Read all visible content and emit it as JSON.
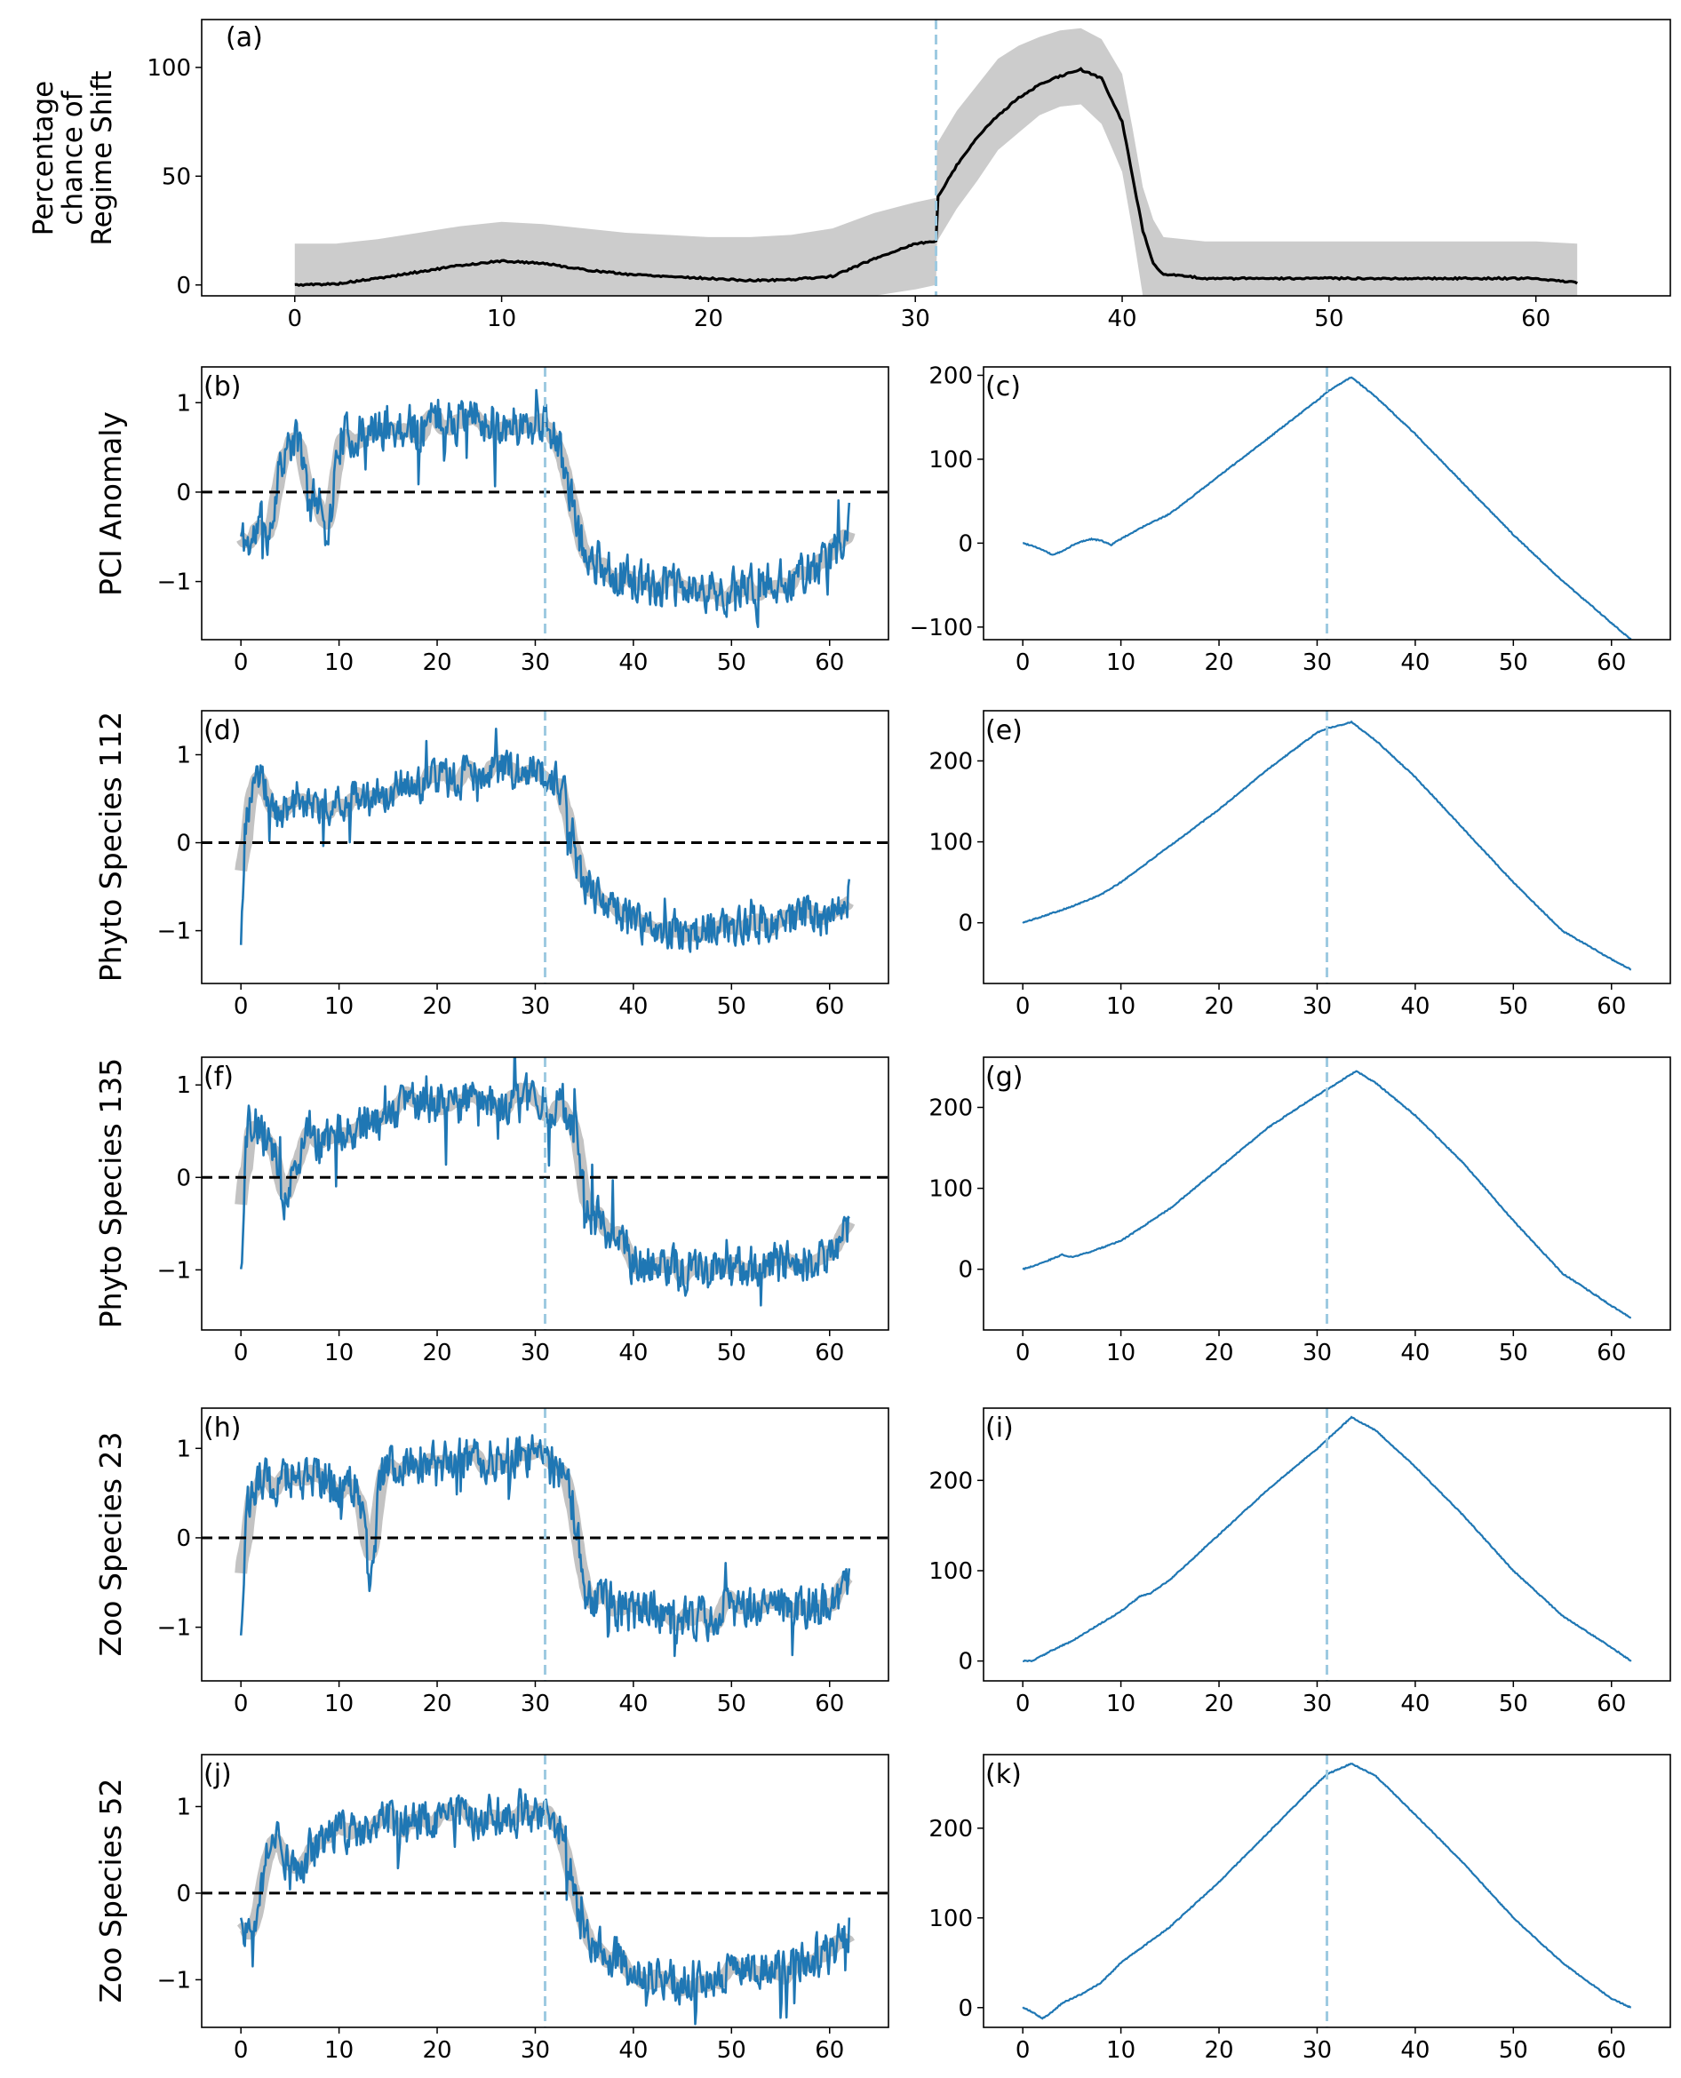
{
  "colors": {
    "line": "#1f77b4",
    "band": "#bdbdbd",
    "band_a": "#cccccc",
    "prob_line": "#000000",
    "vline": "#9ecae1",
    "zero": "#000000"
  },
  "chart_data": [
    {
      "id": "a",
      "type": "line",
      "panel_label": "(a)",
      "ylabel_lines": [
        "Percentage",
        "chance of",
        "Regime Shift"
      ],
      "xlim": [
        -4.5,
        66.5
      ],
      "ylim": [
        -5,
        122
      ],
      "xticks": [
        0,
        10,
        20,
        30,
        40,
        50,
        60
      ],
      "yticks": [
        0,
        50,
        100
      ],
      "vline": 31,
      "series": [
        {
          "name": "mean",
          "x": [
            0,
            2,
            4,
            6,
            8,
            10,
            12,
            14,
            16,
            18,
            20,
            22,
            24,
            26,
            28,
            30,
            31,
            31.05,
            32,
            33,
            34,
            35,
            36,
            37,
            38,
            39,
            40,
            40.5,
            41,
            41.5,
            42,
            44,
            48,
            55,
            60,
            62
          ],
          "values": [
            0,
            0.5,
            3,
            6,
            9,
            11,
            10,
            7,
            5,
            4,
            3,
            2,
            2.5,
            4,
            12,
            19,
            20,
            40,
            55,
            68,
            78,
            86,
            92,
            96,
            99,
            95,
            75,
            50,
            25,
            10,
            5,
            3,
            3,
            3,
            3,
            1
          ]
        },
        {
          "name": "upper",
          "x": [
            0,
            2,
            4,
            6,
            8,
            10,
            12,
            14,
            16,
            18,
            20,
            22,
            24,
            26,
            28,
            30,
            31,
            31.05,
            32,
            33,
            34,
            35,
            36,
            37,
            38,
            39,
            40,
            40.5,
            41,
            41.5,
            42,
            44,
            48,
            55,
            60,
            62
          ],
          "values": [
            19,
            19,
            21,
            24,
            27,
            29,
            28,
            26,
            24,
            23,
            22,
            22,
            23,
            26,
            33,
            38,
            40,
            65,
            80,
            92,
            104,
            110,
            114,
            117,
            118,
            113,
            97,
            72,
            45,
            30,
            22,
            20,
            20,
            20,
            20,
            19
          ]
        },
        {
          "name": "lower",
          "x": [
            0,
            2,
            4,
            6,
            8,
            10,
            12,
            14,
            16,
            18,
            20,
            22,
            24,
            26,
            28,
            30,
            31,
            31.05,
            32,
            33,
            34,
            35,
            36,
            37,
            38,
            39,
            40,
            40.5,
            41,
            41.5,
            42,
            44,
            48,
            55,
            60,
            62
          ],
          "values": [
            -5,
            -5,
            -5,
            -5,
            -5,
            -5,
            -5,
            -5,
            -5,
            -5,
            -5,
            -5,
            -5,
            -5,
            -5,
            -2,
            0,
            20,
            35,
            48,
            62,
            70,
            78,
            82,
            83,
            74,
            52,
            25,
            -5,
            -5,
            -5,
            -5,
            -5,
            -5,
            -5,
            -5
          ]
        }
      ]
    },
    {
      "id": "b",
      "type": "line",
      "panel_label": "(b)",
      "row_label": "PCI Anomaly",
      "xlim": [
        -4,
        66
      ],
      "ylim": [
        -1.65,
        1.4
      ],
      "xticks": [
        0,
        10,
        20,
        30,
        40,
        50,
        60
      ],
      "yticks": [
        -1,
        0,
        1
      ],
      "ytick_labels": [
        "−1",
        "0",
        "1"
      ],
      "zero_line": true,
      "vline": 31,
      "band": true,
      "anchor_x": [
        0,
        1,
        2,
        3,
        4,
        5,
        6,
        7,
        8,
        9,
        10,
        15,
        20,
        25,
        30,
        31,
        32,
        33,
        34,
        35,
        40,
        45,
        50,
        55,
        60,
        62
      ],
      "anchor_y": [
        -0.5,
        -0.6,
        -0.3,
        -0.5,
        0.4,
        0.5,
        0.6,
        -0.2,
        0,
        -0.4,
        0.6,
        0.7,
        0.8,
        0.8,
        0.75,
        0.8,
        0.6,
        0.3,
        -0.3,
        -0.7,
        -1.0,
        -1.1,
        -1.1,
        -1.0,
        -0.8,
        -0.3
      ],
      "noise": 0.22,
      "seed": 11,
      "n_points": 620
    },
    {
      "id": "c",
      "type": "line",
      "panel_label": "(c)",
      "xlim": [
        -4,
        66
      ],
      "ylim": [
        -115,
        210
      ],
      "xticks": [
        0,
        10,
        20,
        30,
        40,
        50,
        60
      ],
      "yticks": [
        -100,
        0,
        100,
        200
      ],
      "ytick_labels": [
        "−100",
        "0",
        "100",
        "200"
      ],
      "vline": 31,
      "x": [
        0,
        1,
        2,
        3,
        4,
        5,
        6,
        7,
        8,
        9,
        10,
        12,
        15,
        20,
        25,
        30,
        31,
        33.5,
        36,
        40,
        45,
        50,
        55,
        60,
        62
      ],
      "values": [
        0,
        -3,
        -8,
        -14,
        -10,
        -3,
        2,
        5,
        3,
        -2,
        5,
        18,
        35,
        80,
        125,
        170,
        180,
        198,
        174,
        130,
        70,
        10,
        -45,
        -95,
        -115
      ]
    },
    {
      "id": "d",
      "type": "line",
      "panel_label": "(d)",
      "row_label": "Phyto Species 112",
      "xlim": [
        -4,
        66
      ],
      "ylim": [
        -1.6,
        1.5
      ],
      "xticks": [
        0,
        10,
        20,
        30,
        40,
        50,
        60
      ],
      "yticks": [
        -1,
        0,
        1
      ],
      "ytick_labels": [
        "−1",
        "0",
        "1"
      ],
      "zero_line": true,
      "vline": 31,
      "band": true,
      "anchor_x": [
        0,
        0.5,
        1,
        2,
        3,
        4,
        5,
        6,
        8,
        10,
        15,
        20,
        25,
        30,
        31,
        32,
        33,
        34,
        35,
        40,
        45,
        50,
        55,
        60,
        62
      ],
      "anchor_y": [
        -1.0,
        0.1,
        0.6,
        0.7,
        0.5,
        0.4,
        0.3,
        0.5,
        0.4,
        0.5,
        0.6,
        0.7,
        0.8,
        0.85,
        0.8,
        0.7,
        0.5,
        -0.2,
        -0.5,
        -0.9,
        -1.0,
        -1.0,
        -0.9,
        -0.8,
        -0.6
      ],
      "noise": 0.2,
      "seed": 23,
      "n_points": 620
    },
    {
      "id": "e",
      "type": "line",
      "panel_label": "(e)",
      "xlim": [
        -4,
        66
      ],
      "ylim": [
        -75,
        262
      ],
      "xticks": [
        0,
        10,
        20,
        30,
        40,
        50,
        60
      ],
      "yticks": [
        0,
        100,
        200
      ],
      "vline": 31,
      "x": [
        0,
        2,
        5,
        8,
        10,
        15,
        20,
        25,
        30,
        31,
        33.5,
        36,
        40,
        45,
        50,
        55,
        60,
        62
      ],
      "values": [
        0,
        8,
        20,
        35,
        50,
        95,
        140,
        190,
        235,
        240,
        248,
        225,
        180,
        115,
        50,
        -10,
        -45,
        -58
      ]
    },
    {
      "id": "f",
      "type": "line",
      "panel_label": "(f)",
      "row_label": "Phyto Species 135",
      "xlim": [
        -4,
        66
      ],
      "ylim": [
        -1.65,
        1.3
      ],
      "xticks": [
        0,
        10,
        20,
        30,
        40,
        50,
        60
      ],
      "yticks": [
        -1,
        0,
        1
      ],
      "ytick_labels": [
        "−1",
        "0",
        "1"
      ],
      "zero_line": true,
      "vline": 31,
      "band": true,
      "anchor_x": [
        0,
        0.5,
        1,
        2,
        3,
        4,
        4.5,
        5,
        6,
        7,
        8,
        10,
        15,
        20,
        25,
        30,
        31,
        33,
        34,
        35,
        40,
        45,
        50,
        55,
        60,
        62
      ],
      "anchor_y": [
        -1.0,
        0.4,
        0.6,
        0.5,
        0.4,
        0.1,
        -0.3,
        0.0,
        0.4,
        0.5,
        0.3,
        0.5,
        0.7,
        0.8,
        0.8,
        0.85,
        0.8,
        0.75,
        0.5,
        -0.3,
        -0.9,
        -1.0,
        -1.0,
        -0.95,
        -0.85,
        -0.5
      ],
      "noise": 0.22,
      "seed": 37,
      "n_points": 620
    },
    {
      "id": "g",
      "type": "line",
      "panel_label": "(g)",
      "xlim": [
        -4,
        66
      ],
      "ylim": [
        -75,
        262
      ],
      "xticks": [
        0,
        10,
        20,
        30,
        40,
        50,
        60
      ],
      "yticks": [
        0,
        100,
        200
      ],
      "vline": 31,
      "x": [
        0,
        2,
        4,
        5,
        7,
        10,
        15,
        20,
        25,
        30,
        31,
        34,
        36,
        40,
        45,
        50,
        55,
        60,
        62
      ],
      "values": [
        0,
        8,
        18,
        15,
        22,
        35,
        75,
        125,
        175,
        215,
        222,
        245,
        230,
        190,
        130,
        60,
        -5,
        -45,
        -60
      ]
    },
    {
      "id": "h",
      "type": "line",
      "panel_label": "(h)",
      "row_label": "Zoo Species 23",
      "xlim": [
        -4,
        66
      ],
      "ylim": [
        -1.6,
        1.45
      ],
      "xticks": [
        0,
        10,
        20,
        30,
        40,
        50,
        60
      ],
      "yticks": [
        -1,
        0,
        1
      ],
      "ytick_labels": [
        "−1",
        "0",
        "1"
      ],
      "zero_line": true,
      "vline": 31,
      "band": true,
      "anchor_x": [
        0,
        0.5,
        1,
        2,
        3,
        5,
        8,
        10,
        12,
        13,
        13.5,
        14,
        15,
        20,
        25,
        30,
        31,
        33,
        34,
        35,
        40,
        45,
        50,
        55,
        60,
        62
      ],
      "anchor_y": [
        -0.9,
        0.2,
        0.5,
        0.7,
        0.6,
        0.7,
        0.7,
        0.6,
        0.6,
        -0.4,
        -0.4,
        0.6,
        0.8,
        0.85,
        0.9,
        0.95,
        0.9,
        0.7,
        0.3,
        -0.6,
        -0.85,
        -0.9,
        -0.85,
        -0.8,
        -0.75,
        -0.6
      ],
      "noise": 0.22,
      "seed": 53,
      "n_points": 620
    },
    {
      "id": "i",
      "type": "line",
      "panel_label": "(i)",
      "xlim": [
        -4,
        66
      ],
      "ylim": [
        -22,
        280
      ],
      "xticks": [
        0,
        10,
        20,
        30,
        40,
        50,
        60
      ],
      "yticks": [
        0,
        100,
        200
      ],
      "vline": 31,
      "x": [
        0,
        1,
        3,
        5,
        8,
        10,
        12,
        13,
        15,
        20,
        25,
        30,
        31,
        33.5,
        36,
        40,
        45,
        50,
        55,
        60,
        62
      ],
      "values": [
        0,
        0,
        12,
        22,
        42,
        55,
        72,
        75,
        90,
        140,
        190,
        235,
        245,
        270,
        255,
        215,
        160,
        100,
        50,
        15,
        0
      ]
    },
    {
      "id": "j",
      "type": "line",
      "panel_label": "(j)",
      "row_label": "Zoo Species 52",
      "xlim": [
        -4,
        66
      ],
      "ylim": [
        -1.55,
        1.6
      ],
      "xticks": [
        0,
        10,
        20,
        30,
        40,
        50,
        60
      ],
      "yticks": [
        -1,
        0,
        1
      ],
      "ytick_labels": [
        "−1",
        "0",
        "1"
      ],
      "zero_line": true,
      "vline": 31,
      "band": true,
      "anchor_x": [
        0,
        1,
        2,
        3,
        4,
        5,
        6,
        7,
        8,
        10,
        15,
        20,
        25,
        30,
        31,
        33,
        34,
        35,
        40,
        45,
        50,
        55,
        60,
        62
      ],
      "anchor_y": [
        -0.4,
        -0.6,
        0.0,
        0.7,
        0.6,
        0.2,
        0.3,
        0.5,
        0.6,
        0.7,
        0.8,
        0.85,
        0.9,
        0.95,
        0.9,
        0.7,
        0.0,
        -0.5,
        -0.9,
        -1.0,
        -0.9,
        -0.85,
        -0.7,
        -0.4
      ],
      "noise": 0.22,
      "seed": 71,
      "n_points": 620
    },
    {
      "id": "k",
      "type": "line",
      "panel_label": "(k)",
      "xlim": [
        -4,
        66
      ],
      "ylim": [
        -22,
        282
      ],
      "xticks": [
        0,
        10,
        20,
        30,
        40,
        50,
        60
      ],
      "yticks": [
        0,
        100,
        200
      ],
      "vline": 31,
      "x": [
        0,
        1,
        2,
        3,
        4,
        6,
        8,
        10,
        15,
        20,
        25,
        30,
        31,
        33.5,
        36,
        40,
        45,
        50,
        55,
        60,
        62
      ],
      "values": [
        0,
        -5,
        -12,
        -5,
        5,
        15,
        28,
        50,
        90,
        140,
        195,
        250,
        260,
        272,
        258,
        215,
        160,
        100,
        50,
        10,
        0
      ]
    }
  ]
}
